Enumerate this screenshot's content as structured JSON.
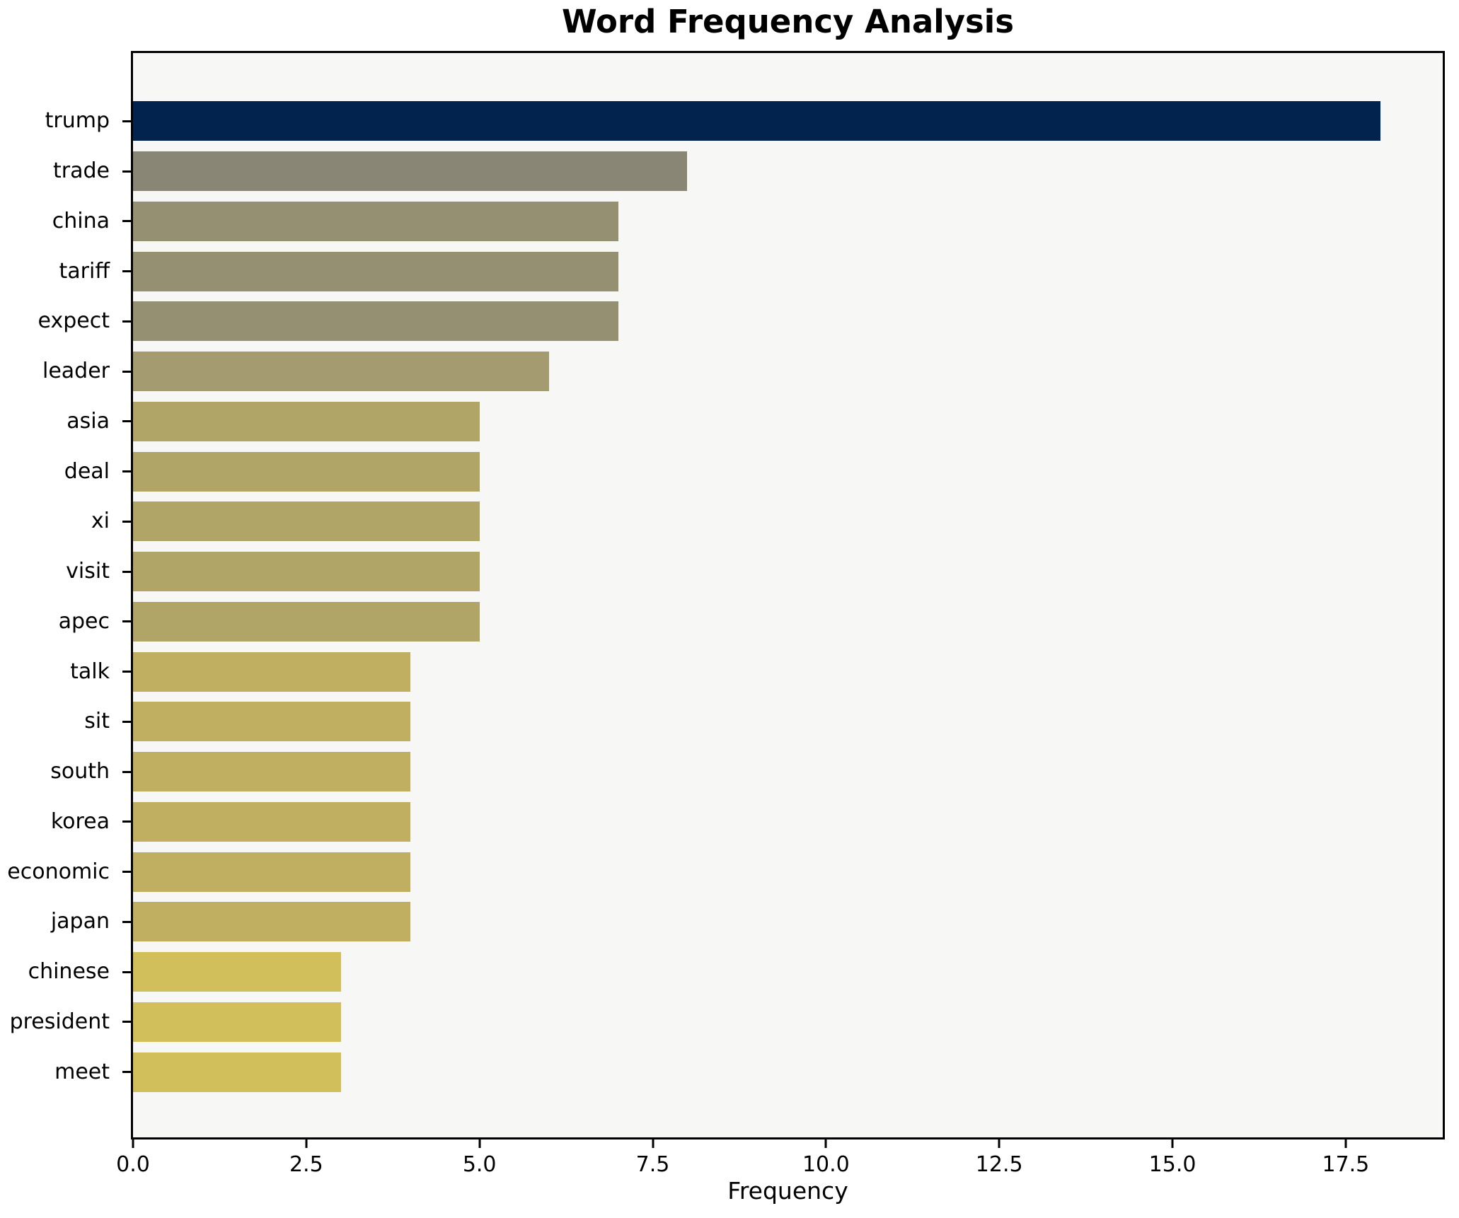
{
  "figure": {
    "title": "Word Frequency Analysis",
    "xlabel": "Frequency"
  },
  "chart_data": {
    "type": "bar",
    "orientation": "horizontal",
    "title": "Word Frequency Analysis",
    "xlabel": "Frequency",
    "ylabel": "",
    "categories": [
      "trump",
      "trade",
      "china",
      "tariff",
      "expect",
      "leader",
      "asia",
      "deal",
      "xi",
      "visit",
      "apec",
      "talk",
      "sit",
      "south",
      "korea",
      "economic",
      "japan",
      "chinese",
      "president",
      "meet"
    ],
    "values": [
      18,
      8,
      7,
      7,
      7,
      6,
      5,
      5,
      5,
      5,
      5,
      4,
      4,
      4,
      4,
      4,
      4,
      3,
      3,
      3
    ],
    "xlim": [
      0,
      18.9
    ],
    "xticks": [
      0,
      2.5,
      5,
      7.5,
      10,
      12.5,
      15,
      17.5
    ],
    "xtick_decimals": 1,
    "grid": false,
    "legend": null,
    "plot_background": "#f7f7f5",
    "axis_color": "#000000",
    "value_colors": {
      "18": "#02234e",
      "8": "#8a8676",
      "7": "#949071",
      "6": "#a49b70",
      "5": "#b0a466",
      "4": "#c0af61",
      "3": "#d1bf5c"
    }
  }
}
